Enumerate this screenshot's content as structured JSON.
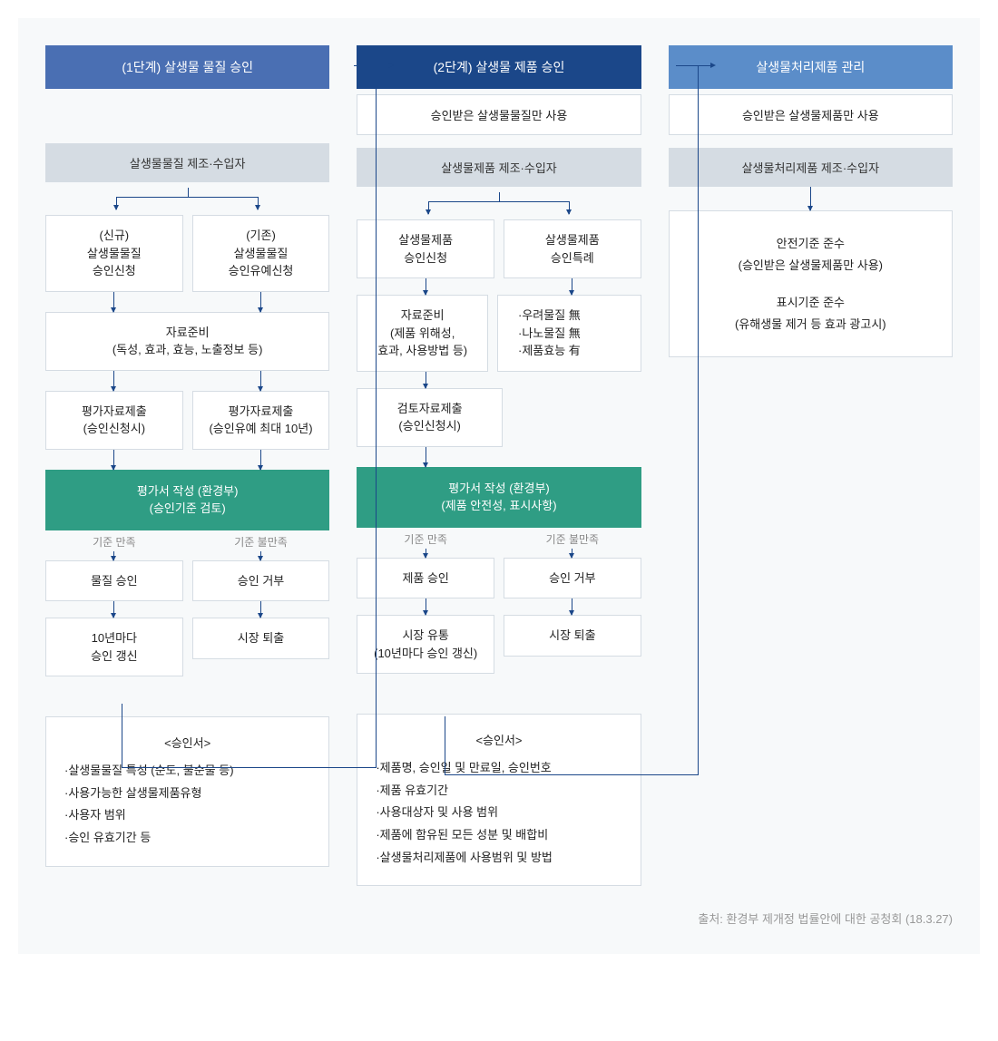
{
  "colors": {
    "hdr1": "#4a6fb3",
    "hdr2": "#1b4789",
    "hdr3": "#5b8dc9",
    "sub": "#d5dce3",
    "eval": "#2f9d84",
    "border": "#d5dce3",
    "connector": "#1b4789",
    "bg": "#f7f9fa",
    "text": "#222222",
    "label": "#888888",
    "src": "#999999"
  },
  "col1": {
    "header": "(1단계) 살생물 물질 승인",
    "sub": "살생물물질 제조·수입자",
    "newApp": "(신규)\n살생물물질\n승인신청",
    "existApp": "(기존)\n살생물물질\n승인유예신청",
    "prep": "자료준비\n(독성, 효과, 효능, 노출정보 등)",
    "submitL": "평가자료제출\n(승인신청시)",
    "submitR": "평가자료제출\n(승인유예 최대 10년)",
    "eval": "평가서 작성 (환경부)\n(승인기준 검토)",
    "satLabel": "기준 만족",
    "unsatLabel": "기준 불만족",
    "approve": "물질 승인",
    "reject": "승인 거부",
    "renew": "10년마다\n승인 갱신",
    "exit": "시장 퇴출",
    "certTitle": "<승인서>",
    "certItems": [
      "·살생물물질 특성 (순도, 불순물 등)",
      "·사용가능한 살생물제품유형",
      "·사용자 범위",
      "·승인 유효기간 등"
    ]
  },
  "col2": {
    "header": "(2단계) 살생물 제품 승인",
    "info": "승인받은 살생물물질만 사용",
    "sub": "살생물제품 제조·수입자",
    "appL": "살생물제품\n승인신청",
    "appR": "살생물제품\n승인특례",
    "prep": "자료준비\n(제품 위해성,\n효과, 사용방법 등)",
    "specials": "·우려물질 無\n·나노물질 無\n·제품효능 有",
    "submit": "검토자료제출\n(승인신청시)",
    "eval": "평가서 작성 (환경부)\n(제품 안전성, 표시사항)",
    "satLabel": "기준 만족",
    "unsatLabel": "기준 불만족",
    "approve": "제품 승인",
    "reject": "승인 거부",
    "market": "시장 유통\n(10년마다 승인 갱신)",
    "exit": "시장 퇴출",
    "certTitle": "<승인서>",
    "certItems": [
      "·제품명, 승인일 및 만료일, 승인번호",
      "·제품 유효기간",
      "·사용대상자 및 사용 범위",
      "·제품에 함유된 모든 성분 및 배합비",
      "·살생물처리제품에 사용범위 및 방법"
    ]
  },
  "col3": {
    "header": "살생물처리제품 관리",
    "info": "승인받은 살생물제품만 사용",
    "sub": "살생물처리제품 제조·수입자",
    "comp1": "안전기준 준수",
    "comp1sub": "(승인받은 살생물제품만 사용)",
    "comp2": "표시기준 준수",
    "comp2sub": "(유해생물 제거 등 효과 광고시)"
  },
  "source": "출처: 환경부 제개정 법률안에 대한 공청회 (18.3.27)"
}
